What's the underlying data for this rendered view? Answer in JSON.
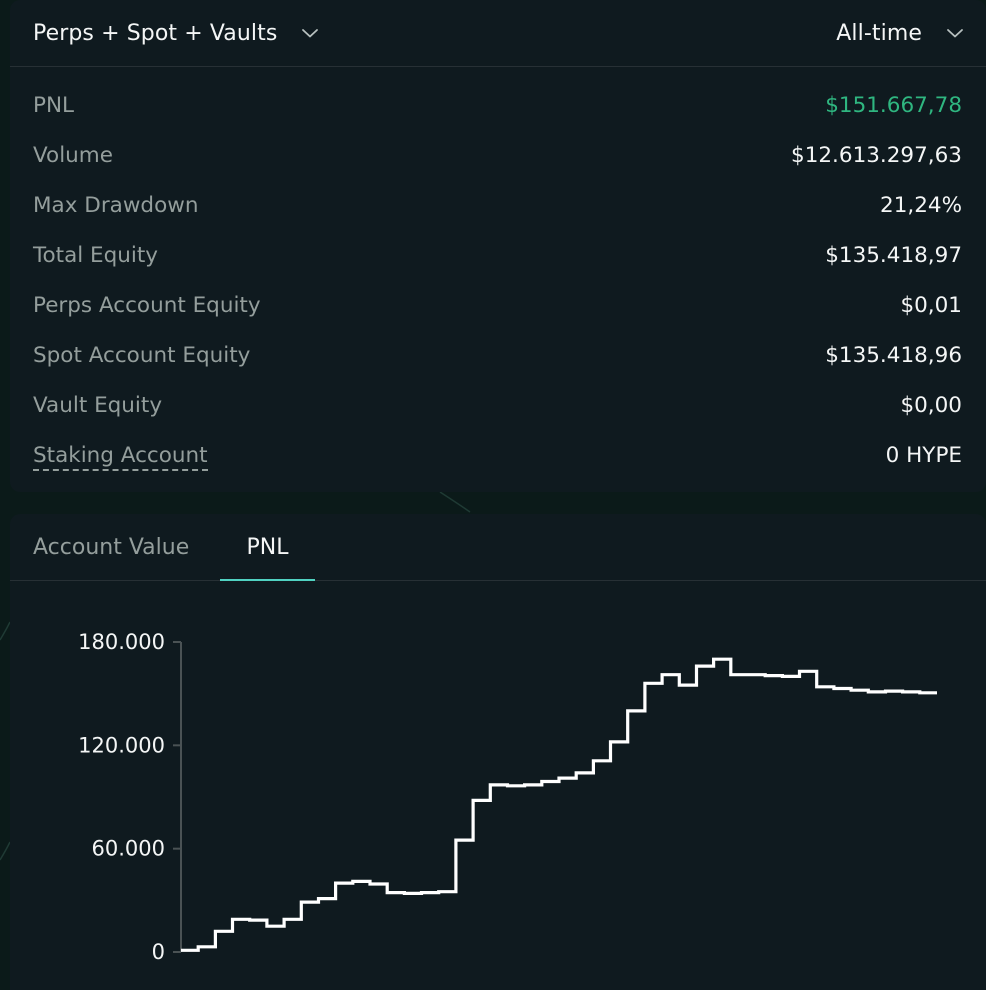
{
  "header": {
    "scope_label": "Perps + Spot + Vaults",
    "range_label": "All-time"
  },
  "stats": [
    {
      "label": "PNL",
      "value": "$151.667,78"
    },
    {
      "label": "Volume",
      "value": "$12.613.297,63"
    },
    {
      "label": "Max Drawdown",
      "value": "21,24%"
    },
    {
      "label": "Total Equity",
      "value": "$135.418,97"
    },
    {
      "label": "Perps Account Equity",
      "value": "$0,01"
    },
    {
      "label": "Spot Account Equity",
      "value": "$135.418,96"
    },
    {
      "label": "Vault Equity",
      "value": "$0,00"
    },
    {
      "label": "Staking Account",
      "value": "0 HYPE"
    }
  ],
  "tabs": [
    {
      "label": "Account Value",
      "active": false
    },
    {
      "label": "PNL",
      "active": true
    }
  ],
  "colors": {
    "positive": "#2fb680",
    "accent": "#50d2c1",
    "line": "#ffffff"
  },
  "chart_data": {
    "type": "line",
    "step": true,
    "ylim": [
      0,
      180000
    ],
    "yticks": [
      0,
      60000,
      120000,
      180000
    ],
    "ytick_labels": [
      "0",
      "60.000",
      "120.000",
      "180.000"
    ],
    "series": [
      {
        "values": [
          1000,
          3000,
          12000,
          19000,
          18500,
          15000,
          19000,
          29000,
          31000,
          40000,
          41000,
          39500,
          34500,
          34000,
          34500,
          35000,
          65000,
          88000,
          97000,
          96500,
          97000,
          99000,
          101000,
          104000,
          111000,
          122000,
          140000,
          156000,
          161000,
          155000,
          166000,
          170000,
          161000,
          161000,
          160500,
          160000,
          163000,
          154000,
          153000,
          152000,
          151000,
          151500,
          151000,
          150500
        ]
      }
    ]
  }
}
